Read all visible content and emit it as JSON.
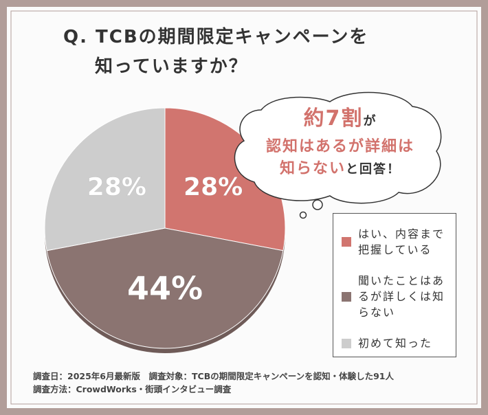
{
  "chart_data": {
    "type": "pie",
    "title_lines": [
      "Q. TCBの期間限定キャンペーンを",
      "知っていますか？"
    ],
    "categories": [
      "はい、内容まで把握している",
      "聞いたことはあるが詳しくは知らない",
      "初めて知った"
    ],
    "values": [
      28,
      44,
      28
    ],
    "value_labels": [
      "28%",
      "44%",
      "28%"
    ],
    "colors": [
      "#d1756f",
      "#8b7471",
      "#cdcdcd"
    ],
    "bubble_lines": [
      [
        {
          "text": "約7割",
          "em": true,
          "big": true
        },
        {
          "text": "が",
          "em": false,
          "big": false
        }
      ],
      [
        {
          "text": "認知はあるが詳細は",
          "em": true,
          "big": false
        }
      ],
      [
        {
          "text": "知らない",
          "em": true,
          "big": false
        },
        {
          "text": "と回答！",
          "em": false,
          "big": false
        }
      ]
    ],
    "notes": [
      "調査日：2025年6月最新版　調査対象：TCBの期間限定キャンペーンを認知・体験した91人",
      "調査方法：CrowdWorks・街頭インタビュー調査"
    ]
  }
}
